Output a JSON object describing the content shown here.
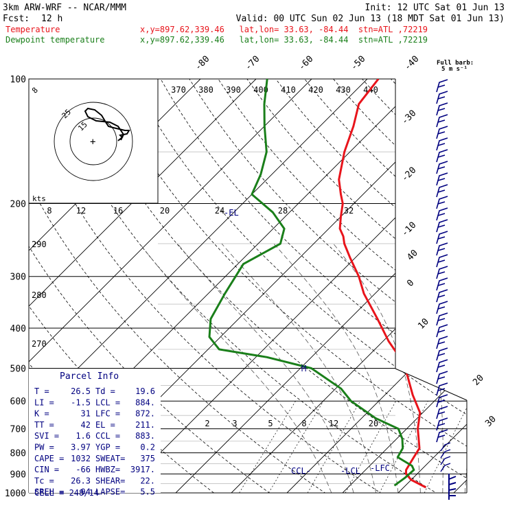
{
  "header": {
    "model": "3km ARW-WRF -- NCAR/MMM",
    "init": "Init: 12 UTC Sat 01 Jun 13",
    "fcst_label": "Fcst:",
    "fcst_value": "12 h",
    "valid": "Valid: 00 UTC Sun 02 Jun 13 (18 MDT Sat 01 Jun 13)"
  },
  "legend": {
    "temp_label": "Temperature",
    "temp_info": "x,y=897.62,339.46   lat,lon= 33.63, -84.44  stn=ATL ,72219",
    "dew_label": "Dewpoint temperature",
    "dew_info": "x,y=897.62,339.46   lat,lon= 33.63, -84.44  stn=ATL ,72219"
  },
  "colors": {
    "temperature": "#e8141b",
    "dewpoint": "#1a7f1a",
    "annotation": "#000080",
    "axis": "#000000"
  },
  "barb_header": {
    "line1": "Full barb:",
    "line2": "5 m s⁻¹"
  },
  "hodograph": {
    "units": "kts",
    "ring_labels": [
      "8",
      "12",
      "16",
      "20",
      "24",
      "28",
      "32"
    ],
    "inner_labels": [
      "25",
      "15"
    ]
  },
  "levels": {
    "isotherm_top_labels": [
      "-80",
      "-70",
      "-60",
      "-50",
      "-40"
    ],
    "isotherm_right_labels": [
      "-30",
      "-20",
      "-10",
      "0",
      "10",
      "20",
      "30",
      "40"
    ],
    "theta_labels": [
      "370",
      "380",
      "390",
      "400",
      "410",
      "420",
      "430",
      "440"
    ],
    "theta_left_labels": [
      "290",
      "280",
      "270"
    ],
    "mixing_ratio_labels": [
      "2",
      "3",
      "5",
      "8",
      "12",
      "20"
    ]
  },
  "annotations": {
    "el": "-EL",
    "m": "M",
    "ccl": "CCL-",
    "lcl": "-LCL",
    "lfc": "-LFC"
  },
  "parcel": {
    "title": "Parcel Info",
    "rows": [
      [
        "T  =",
        "26.5",
        "Td  =",
        "19.6"
      ],
      [
        "LI =",
        "-1.5",
        "LCL =",
        "884."
      ],
      [
        "K  =",
        "31",
        "LFC =",
        "872."
      ],
      [
        "TT =",
        "42",
        "EL  =",
        "211."
      ],
      [
        "SVI =",
        "1.6",
        "CCL =",
        "883."
      ],
      [
        "PW =",
        "3.97",
        "YGP =",
        "0.2"
      ],
      [
        "CAPE =",
        "1032",
        "SWEAT=",
        "375"
      ],
      [
        "CIN =",
        "-66",
        "HWBZ=",
        "3917."
      ],
      [
        "Tc =",
        "26.3",
        "SHEAR=",
        "22."
      ],
      [
        "SREH =",
        "94",
        "LAPSE=",
        "5.5"
      ]
    ],
    "cell": "CELL = 248/14"
  },
  "chart_data": {
    "type": "line",
    "title": "3km ARW-WRF -- NCAR/MMM",
    "xlabel": "",
    "ylabel": "",
    "pressure_levels": [
      "100",
      "200",
      "300",
      "400",
      "500",
      "600",
      "700",
      "800",
      "900",
      "1000"
    ],
    "y_axis": "pressure (hPa), log scale",
    "ylim": [
      1000,
      100
    ],
    "series": [
      {
        "name": "Temperature",
        "color": "#e8141b",
        "pressure": [
          970,
          930,
          900,
          880,
          820,
          780,
          700,
          640,
          580,
          520,
          480,
          430,
          380,
          330,
          300,
          270,
          250,
          240,
          230,
          215,
          200,
          190,
          175,
          150,
          130,
          115,
          100
        ],
        "temperature": [
          24.0,
          20.0,
          18.0,
          17.3,
          16.4,
          15.8,
          12.0,
          9.5,
          5.0,
          0.5,
          -3.0,
          -9.0,
          -15.0,
          -22.0,
          -26.0,
          -31.0,
          -34.5,
          -36.0,
          -38.0,
          -40.0,
          -42.0,
          -44.0,
          -47.0,
          -51.0,
          -54.0,
          -57.0,
          -58.0
        ]
      },
      {
        "name": "Dewpoint temperature",
        "color": "#1a7f1a",
        "pressure": [
          960,
          920,
          880,
          860,
          820,
          780,
          740,
          700,
          660,
          600,
          560,
          500,
          470,
          450,
          420,
          380,
          330,
          280,
          250,
          230,
          210,
          190,
          170,
          150,
          130,
          115,
          100
        ],
        "dewpoint": [
          18.0,
          18.5,
          18.7,
          17.6,
          13.5,
          12.8,
          11.0,
          8.5,
          2.5,
          -5.0,
          -9.0,
          -18.0,
          -28.0,
          -38.0,
          -42.0,
          -45.0,
          -47.0,
          -49.0,
          -46.0,
          -48.0,
          -53.0,
          -60.0,
          -62.0,
          -65.0,
          -70.0,
          -74.0,
          -78.0
        ]
      }
    ]
  }
}
